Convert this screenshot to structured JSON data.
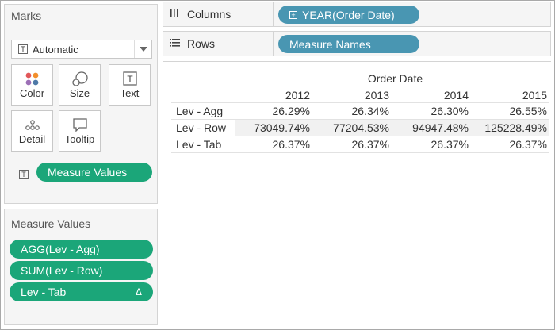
{
  "marks": {
    "title": "Marks",
    "mark_type": "Automatic",
    "buttons": {
      "color": "Color",
      "size": "Size",
      "text": "Text",
      "detail": "Detail",
      "tooltip": "Tooltip"
    },
    "text_pill": "Measure Values",
    "colors": {
      "pill_green": "#1ba679"
    }
  },
  "measure_values_card": {
    "title": "Measure Values",
    "items": [
      {
        "label": "AGG(Lev - Agg)"
      },
      {
        "label": "SUM(Lev - Row)"
      },
      {
        "label": "Lev - Tab",
        "badge": "Δ"
      }
    ]
  },
  "shelves": {
    "columns": {
      "label": "Columns",
      "pill": "YEAR(Order Date)"
    },
    "rows": {
      "label": "Rows",
      "pill": "Measure Names"
    },
    "colors": {
      "pill_blue": "#4996b2"
    }
  },
  "view": {
    "column_header_title": "Order Date",
    "columns": [
      "2012",
      "2013",
      "2014",
      "2015"
    ],
    "rows": [
      {
        "label": "Lev - Agg",
        "values": [
          "26.29%",
          "26.34%",
          "26.30%",
          "26.55%"
        ]
      },
      {
        "label": "Lev - Row",
        "values": [
          "73049.74%",
          "77204.53%",
          "94947.48%",
          "125228.49%"
        ]
      },
      {
        "label": "Lev - Tab",
        "values": [
          "26.37%",
          "26.37%",
          "26.37%",
          "26.37%"
        ]
      }
    ]
  }
}
